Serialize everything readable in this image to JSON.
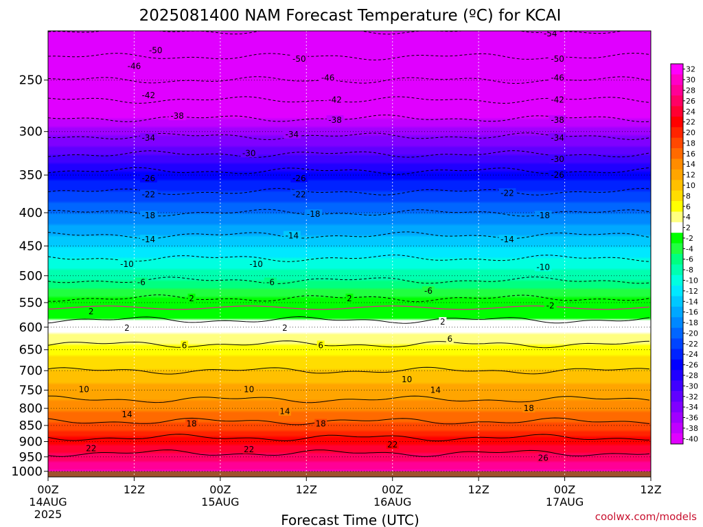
{
  "chart_data": {
    "type": "heatmap",
    "title": "2025081400 NAM Forecast Temperature (ºC) for KCAI",
    "xlabel": "Forecast Time (UTC)",
    "ylabel": "",
    "y_axis": {
      "scale": "log",
      "reversed": true,
      "unit": "hPa",
      "range": [
        210,
        1020
      ],
      "ticks": [
        250,
        300,
        350,
        400,
        450,
        500,
        550,
        600,
        650,
        700,
        750,
        800,
        850,
        900,
        950,
        1000
      ]
    },
    "x_axis": {
      "range_hours": [
        0,
        84
      ],
      "ticks": [
        {
          "hour": 0,
          "lines": [
            "00Z",
            "14AUG",
            "2025"
          ]
        },
        {
          "hour": 12,
          "lines": [
            "12Z"
          ]
        },
        {
          "hour": 24,
          "lines": [
            "00Z",
            "15AUG"
          ]
        },
        {
          "hour": 36,
          "lines": [
            "12Z"
          ]
        },
        {
          "hour": 48,
          "lines": [
            "00Z",
            "16AUG"
          ]
        },
        {
          "hour": 60,
          "lines": [
            "12Z"
          ]
        },
        {
          "hour": 72,
          "lines": [
            "00Z",
            "17AUG"
          ]
        },
        {
          "hour": 84,
          "lines": [
            "12Z"
          ]
        }
      ]
    },
    "grid": true,
    "colorbar": {
      "placement": "right",
      "labels": [
        "32",
        "30",
        "28",
        "26",
        "24",
        "22",
        "20",
        "18",
        "16",
        "14",
        "12",
        "10",
        "8",
        "6",
        "4",
        "2",
        "-2",
        "-4",
        "-6",
        "-8",
        "-10",
        "-12",
        "-14",
        "-16",
        "-18",
        "-20",
        "-22",
        "-24",
        "-26",
        "-28",
        "-30",
        "-32",
        "-34",
        "-36",
        "-38",
        "-40"
      ],
      "colors": [
        "#ff00ff",
        "#ff00c8",
        "#ff0096",
        "#ff0064",
        "#ff0032",
        "#ff0000",
        "#ff2400",
        "#ff4800",
        "#ff6a00",
        "#ff8c00",
        "#ffa500",
        "#ffc000",
        "#ffdd00",
        "#ffff00",
        "#ffff80",
        "#ffffff",
        "#00ff00",
        "#20ff40",
        "#00ff80",
        "#00ffb0",
        "#00ffe0",
        "#00e8ff",
        "#00c8ff",
        "#00a8ff",
        "#0088ff",
        "#0066ff",
        "#0044ff",
        "#0022ff",
        "#0000ff",
        "#2000ff",
        "#4000ff",
        "#6000ff",
        "#8000ff",
        "#a000ff",
        "#c000ff",
        "#e000ff"
      ]
    },
    "profile": {
      "pressure": [
        210,
        250,
        300,
        350,
        400,
        450,
        500,
        550,
        570,
        600,
        650,
        700,
        750,
        800,
        850,
        900,
        950,
        1000
      ],
      "temperature": [
        -54,
        -46,
        -35,
        -25,
        -18,
        -12,
        -7,
        -1,
        1,
        3,
        7,
        10,
        13,
        15,
        19,
        23,
        27,
        30
      ]
    },
    "contours": [
      {
        "label": "-54",
        "hour": 70,
        "pressure": 212
      },
      {
        "label": "-50",
        "hour": 15,
        "pressure": 225
      },
      {
        "label": "-50",
        "hour": 35,
        "pressure": 232
      },
      {
        "label": "-50",
        "hour": 71,
        "pressure": 232
      },
      {
        "label": "-46",
        "hour": 12,
        "pressure": 238
      },
      {
        "label": "-46",
        "hour": 39,
        "pressure": 248
      },
      {
        "label": "-46",
        "hour": 71,
        "pressure": 248
      },
      {
        "label": "-42",
        "hour": 14,
        "pressure": 264
      },
      {
        "label": "-42",
        "hour": 40,
        "pressure": 268
      },
      {
        "label": "-42",
        "hour": 71,
        "pressure": 268
      },
      {
        "label": "-38",
        "hour": 18,
        "pressure": 284
      },
      {
        "label": "-38",
        "hour": 40,
        "pressure": 288
      },
      {
        "label": "-38",
        "hour": 71,
        "pressure": 288
      },
      {
        "label": "-34",
        "hour": 14,
        "pressure": 307
      },
      {
        "label": "-34",
        "hour": 34,
        "pressure": 303
      },
      {
        "label": "-34",
        "hour": 71,
        "pressure": 307
      },
      {
        "label": "-30",
        "hour": 28,
        "pressure": 324
      },
      {
        "label": "-30",
        "hour": 71,
        "pressure": 331
      },
      {
        "label": "-26",
        "hour": 14,
        "pressure": 354
      },
      {
        "label": "-26",
        "hour": 35,
        "pressure": 354
      },
      {
        "label": "-26",
        "hour": 71,
        "pressure": 350
      },
      {
        "label": "-22",
        "hour": 14,
        "pressure": 375
      },
      {
        "label": "-22",
        "hour": 35,
        "pressure": 375
      },
      {
        "label": "-22",
        "hour": 64,
        "pressure": 373
      },
      {
        "label": "-18",
        "hour": 14,
        "pressure": 404
      },
      {
        "label": "-18",
        "hour": 37,
        "pressure": 402
      },
      {
        "label": "-18",
        "hour": 69,
        "pressure": 404
      },
      {
        "label": "-14",
        "hour": 14,
        "pressure": 440
      },
      {
        "label": "-14",
        "hour": 34,
        "pressure": 434
      },
      {
        "label": "-14",
        "hour": 64,
        "pressure": 440
      },
      {
        "label": "-10",
        "hour": 11,
        "pressure": 480
      },
      {
        "label": "-10",
        "hour": 29,
        "pressure": 480
      },
      {
        "label": "-10",
        "hour": 69,
        "pressure": 485
      },
      {
        "label": "-6",
        "hour": 13,
        "pressure": 512
      },
      {
        "label": "-6",
        "hour": 31,
        "pressure": 512
      },
      {
        "label": "-6",
        "hour": 53,
        "pressure": 528
      },
      {
        "label": "2",
        "hour": 20,
        "pressure": 542
      },
      {
        "label": "2",
        "hour": 42,
        "pressure": 542
      },
      {
        "label": "-2",
        "hour": 70,
        "pressure": 556
      },
      {
        "label": "2",
        "hour": 11,
        "pressure": 602
      },
      {
        "label": "2",
        "hour": 33,
        "pressure": 602
      },
      {
        "label": "2",
        "hour": 55,
        "pressure": 589
      },
      {
        "label": "6",
        "hour": 19,
        "pressure": 640
      },
      {
        "label": "6",
        "hour": 38,
        "pressure": 640
      },
      {
        "label": "6",
        "hour": 56,
        "pressure": 626
      },
      {
        "label": "10",
        "hour": 5,
        "pressure": 748
      },
      {
        "label": "10",
        "hour": 28,
        "pressure": 748
      },
      {
        "label": "10",
        "hour": 50,
        "pressure": 722
      },
      {
        "label": "14",
        "hour": 11,
        "pressure": 818
      },
      {
        "label": "14",
        "hour": 33,
        "pressure": 809
      },
      {
        "label": "14",
        "hour": 54,
        "pressure": 750
      },
      {
        "label": "18",
        "hour": 20,
        "pressure": 845
      },
      {
        "label": "18",
        "hour": 38,
        "pressure": 845
      },
      {
        "label": "18",
        "hour": 67,
        "pressure": 800
      },
      {
        "label": "22",
        "hour": 6,
        "pressure": 922
      },
      {
        "label": "22",
        "hour": 28,
        "pressure": 926
      },
      {
        "label": "22",
        "hour": 48,
        "pressure": 910
      },
      {
        "label": "26",
        "hour": 69,
        "pressure": 954
      },
      {
        "label": "2",
        "hour": 6,
        "pressure": 568
      }
    ],
    "ground": {
      "pressure_from": 1000
    }
  },
  "credit": "coolwx.com/models",
  "colors": {
    "ground": "#a0522d",
    "frame": "#000000"
  }
}
